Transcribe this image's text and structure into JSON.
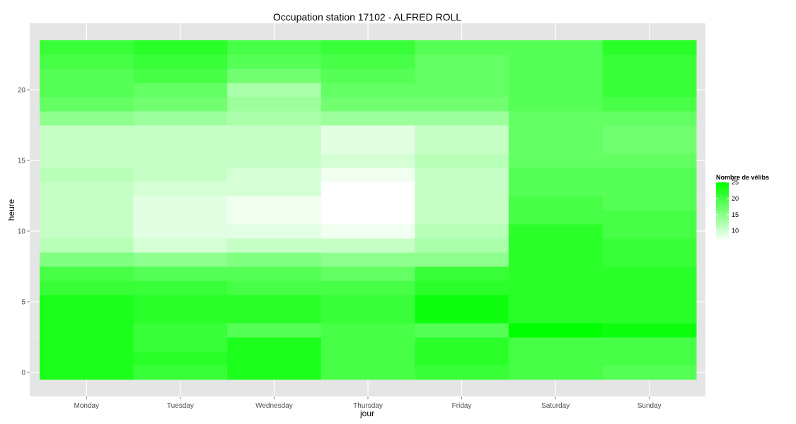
{
  "chart_data": {
    "type": "heatmap",
    "title": "Occupation station 17102 - ALFRED ROLL",
    "xlabel": "jour",
    "ylabel": "heure",
    "x": [
      "Monday",
      "Tuesday",
      "Wednesday",
      "Thursday",
      "Friday",
      "Saturday",
      "Sunday"
    ],
    "y": [
      0,
      1,
      2,
      3,
      4,
      5,
      6,
      7,
      8,
      9,
      10,
      11,
      12,
      13,
      14,
      15,
      16,
      17,
      18,
      19,
      20,
      21,
      22,
      23
    ],
    "y_ticks": [
      0,
      5,
      10,
      15,
      20
    ],
    "ylim": [
      -0.5,
      23.5
    ],
    "values": [
      [
        23,
        21,
        23,
        20,
        21,
        20,
        19
      ],
      [
        23,
        22,
        23,
        20,
        22,
        20,
        20
      ],
      [
        23,
        21,
        23,
        20,
        22,
        20,
        20
      ],
      [
        23,
        21,
        19,
        20,
        19,
        25,
        24
      ],
      [
        23,
        22,
        22,
        21,
        24,
        22,
        22
      ],
      [
        23,
        22,
        22,
        21,
        24,
        22,
        22
      ],
      [
        21,
        21,
        20,
        20,
        22,
        22,
        22
      ],
      [
        20,
        19,
        19,
        18,
        21,
        22,
        22
      ],
      [
        16,
        15,
        16,
        15,
        15,
        22,
        21
      ],
      [
        12,
        10,
        11,
        11,
        13,
        22,
        21
      ],
      [
        11,
        9,
        9,
        8,
        12,
        22,
        20
      ],
      [
        11,
        9,
        8,
        7,
        11,
        20,
        20
      ],
      [
        11,
        9,
        8,
        7,
        11,
        20,
        19
      ],
      [
        11,
        10,
        10,
        7,
        11,
        19,
        19
      ],
      [
        12,
        11,
        10,
        8,
        11,
        19,
        19
      ],
      [
        11,
        11,
        11,
        10,
        12,
        18,
        18
      ],
      [
        11,
        11,
        11,
        9,
        11,
        18,
        17
      ],
      [
        11,
        11,
        11,
        9,
        11,
        18,
        17
      ],
      [
        15,
        14,
        13,
        14,
        14,
        18,
        18
      ],
      [
        18,
        17,
        14,
        17,
        17,
        19,
        20
      ],
      [
        19,
        18,
        13,
        18,
        18,
        19,
        21
      ],
      [
        19,
        20,
        17,
        19,
        18,
        19,
        21
      ],
      [
        20,
        21,
        19,
        20,
        18,
        19,
        21
      ],
      [
        21,
        22,
        20,
        21,
        19,
        19,
        22
      ]
    ],
    "colorscale": {
      "low": "#ffffff",
      "high": "#00ff00",
      "min": 7,
      "max": 25
    },
    "legend": {
      "title": "Nombre de vélibs",
      "breaks": [
        25,
        20,
        15,
        10
      ],
      "position": "right"
    },
    "grid": true,
    "panel_background": "#e5e5e5",
    "grid_color": "#ffffff"
  }
}
